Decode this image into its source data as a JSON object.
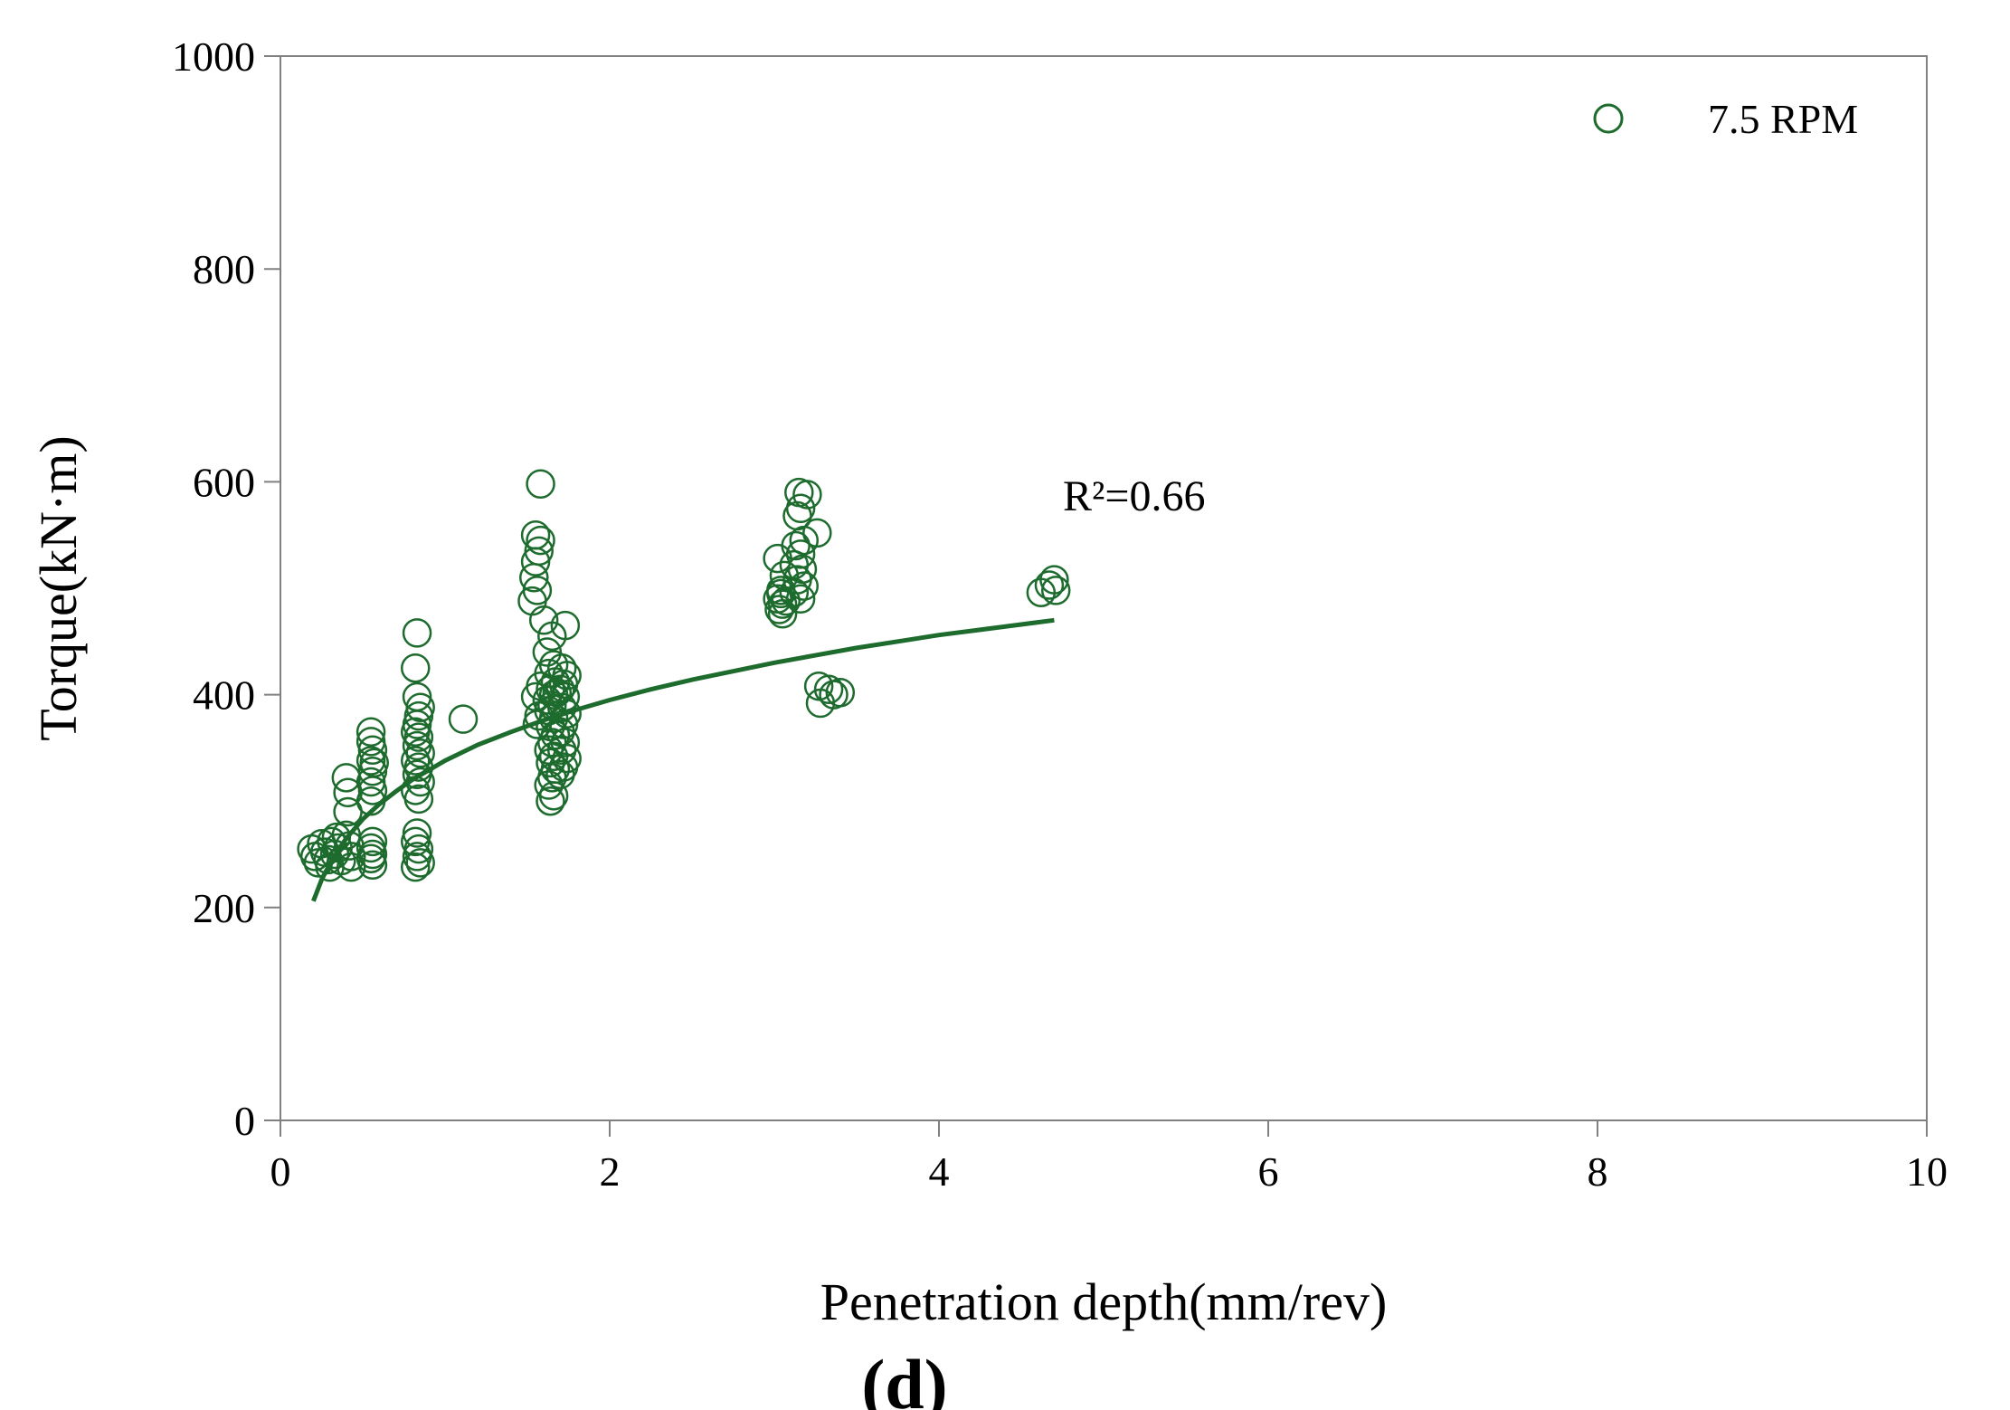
{
  "chart_data": {
    "type": "scatter",
    "xlabel": "Penetration depth(mm/rev)",
    "ylabel": "Torque(kN·m)",
    "xlim": [
      0,
      10
    ],
    "ylim": [
      0,
      1000
    ],
    "xticks": [
      0,
      2,
      4,
      6,
      8,
      10
    ],
    "yticks": [
      0,
      200,
      400,
      600,
      800,
      1000
    ],
    "xtick_labels": [
      "0",
      "2",
      "4",
      "6",
      "8",
      "10"
    ],
    "ytick_labels": [
      "0",
      "200",
      "400",
      "600",
      "800",
      "1000"
    ],
    "grid": false,
    "legend_position": "top-right",
    "panel_label": "(d)",
    "color": "#1e6b2e",
    "series": [
      {
        "name": "7.5 RPM",
        "marker": "open-circle",
        "points": [
          [
            0.19,
            255
          ],
          [
            0.21,
            248
          ],
          [
            0.23,
            242
          ],
          [
            0.25,
            260
          ],
          [
            0.27,
            252
          ],
          [
            0.29,
            245
          ],
          [
            0.31,
            262
          ],
          [
            0.33,
            250
          ],
          [
            0.35,
            256
          ],
          [
            0.37,
            244
          ],
          [
            0.3,
            238
          ],
          [
            0.34,
            266
          ],
          [
            0.4,
            322
          ],
          [
            0.41,
            308
          ],
          [
            0.41,
            290
          ],
          [
            0.42,
            258
          ],
          [
            0.43,
            248
          ],
          [
            0.43,
            238
          ],
          [
            0.4,
            268
          ],
          [
            0.55,
            365
          ],
          [
            0.55,
            356
          ],
          [
            0.56,
            348
          ],
          [
            0.55,
            338
          ],
          [
            0.56,
            328
          ],
          [
            0.55,
            318
          ],
          [
            0.56,
            310
          ],
          [
            0.55,
            300
          ],
          [
            0.56,
            262
          ],
          [
            0.55,
            256
          ],
          [
            0.56,
            250
          ],
          [
            0.55,
            246
          ],
          [
            0.56,
            240
          ],
          [
            0.57,
            336
          ],
          [
            0.83,
            458
          ],
          [
            0.82,
            425
          ],
          [
            0.83,
            398
          ],
          [
            0.85,
            388
          ],
          [
            0.84,
            380
          ],
          [
            0.83,
            372
          ],
          [
            0.82,
            365
          ],
          [
            0.84,
            360
          ],
          [
            0.83,
            352
          ],
          [
            0.85,
            345
          ],
          [
            0.82,
            338
          ],
          [
            0.84,
            332
          ],
          [
            0.83,
            325
          ],
          [
            0.85,
            318
          ],
          [
            0.82,
            310
          ],
          [
            0.84,
            302
          ],
          [
            0.83,
            270
          ],
          [
            0.82,
            262
          ],
          [
            0.84,
            255
          ],
          [
            0.83,
            248
          ],
          [
            0.85,
            242
          ],
          [
            0.82,
            238
          ],
          [
            1.11,
            377
          ],
          [
            1.58,
            598
          ],
          [
            1.55,
            550
          ],
          [
            1.58,
            545
          ],
          [
            1.57,
            535
          ],
          [
            1.55,
            525
          ],
          [
            1.54,
            510
          ],
          [
            1.56,
            498
          ],
          [
            1.53,
            488
          ],
          [
            1.6,
            470
          ],
          [
            1.55,
            398
          ],
          [
            1.58,
            408
          ],
          [
            1.57,
            380
          ],
          [
            1.56,
            372
          ],
          [
            1.65,
            455
          ],
          [
            1.62,
            440
          ],
          [
            1.66,
            428
          ],
          [
            1.63,
            420
          ],
          [
            1.67,
            412
          ],
          [
            1.64,
            405
          ],
          [
            1.66,
            400
          ],
          [
            1.62,
            395
          ],
          [
            1.65,
            390
          ],
          [
            1.68,
            402
          ],
          [
            1.63,
            385
          ],
          [
            1.66,
            378
          ],
          [
            1.64,
            370
          ],
          [
            1.67,
            362
          ],
          [
            1.65,
            355
          ],
          [
            1.63,
            348
          ],
          [
            1.66,
            342
          ],
          [
            1.64,
            336
          ],
          [
            1.67,
            330
          ],
          [
            1.65,
            322
          ],
          [
            1.63,
            315
          ],
          [
            1.66,
            305
          ],
          [
            1.64,
            300
          ],
          [
            1.73,
            465
          ],
          [
            1.71,
            425
          ],
          [
            1.74,
            418
          ],
          [
            1.72,
            410
          ],
          [
            1.7,
            405
          ],
          [
            1.73,
            398
          ],
          [
            1.71,
            388
          ],
          [
            1.74,
            382
          ],
          [
            1.72,
            372
          ],
          [
            1.7,
            365
          ],
          [
            1.73,
            355
          ],
          [
            1.71,
            348
          ],
          [
            1.74,
            340
          ],
          [
            1.72,
            332
          ],
          [
            1.7,
            325
          ],
          [
            3.02,
            528
          ],
          [
            3.06,
            512
          ],
          [
            3.04,
            498
          ],
          [
            3.02,
            490
          ],
          [
            3.05,
            485
          ],
          [
            3.03,
            480
          ],
          [
            3.07,
            488
          ],
          [
            3.05,
            476
          ],
          [
            3.04,
            495
          ],
          [
            3.15,
            590
          ],
          [
            3.2,
            588
          ],
          [
            3.16,
            575
          ],
          [
            3.14,
            568
          ],
          [
            3.18,
            545
          ],
          [
            3.13,
            540
          ],
          [
            3.16,
            532
          ],
          [
            3.12,
            522
          ],
          [
            3.17,
            518
          ],
          [
            3.14,
            508
          ],
          [
            3.18,
            502
          ],
          [
            3.12,
            496
          ],
          [
            3.16,
            490
          ],
          [
            3.26,
            552
          ],
          [
            3.27,
            408
          ],
          [
            3.28,
            392
          ],
          [
            3.33,
            405
          ],
          [
            3.36,
            400
          ],
          [
            3.4,
            402
          ],
          [
            4.62,
            496
          ],
          [
            4.67,
            503
          ],
          [
            4.7,
            508
          ],
          [
            4.71,
            498
          ]
        ]
      }
    ],
    "fit_curve": {
      "type": "logarithmic",
      "r_squared_label": "R²=0.66",
      "x": [
        0.2,
        0.25,
        0.3,
        0.35,
        0.4,
        0.5,
        0.6,
        0.7,
        0.8,
        0.9,
        1.0,
        1.2,
        1.4,
        1.6,
        1.8,
        2.0,
        2.25,
        2.5,
        2.75,
        3.0,
        3.25,
        3.5,
        3.75,
        4.0,
        4.25,
        4.5,
        4.7
      ],
      "y": [
        206,
        226,
        241,
        254,
        265,
        283,
        297,
        309,
        320,
        329,
        338,
        353,
        365,
        376,
        386,
        395,
        405,
        414,
        422,
        430,
        437,
        444,
        450,
        456,
        461,
        466,
        470
      ]
    }
  }
}
